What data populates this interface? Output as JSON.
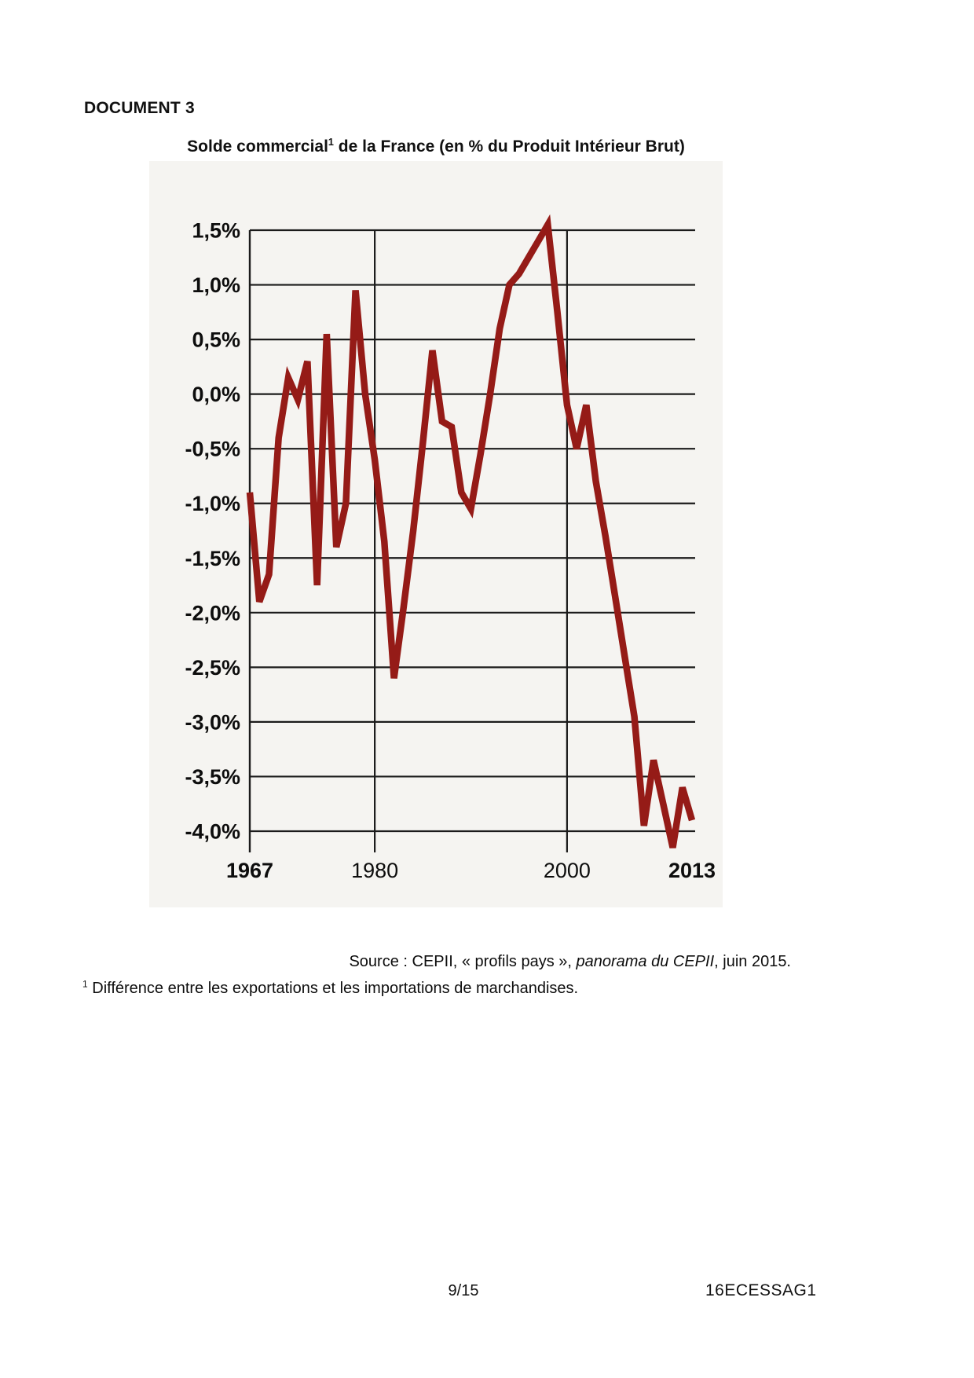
{
  "page": {
    "header": "DOCUMENT 3",
    "footer": {
      "page_number": "9/15",
      "code": "16ECESSAG1"
    }
  },
  "figure": {
    "title": {
      "main": "Solde commercial",
      "sup": "1",
      "rest": " de la France (en % du Produit Intérieur Brut)"
    },
    "source": {
      "prefix": "Source : CEPII, « profils pays », ",
      "italic": "panorama du CEPII",
      "suffix": ", juin 2015."
    },
    "footnote": {
      "sup": "1",
      "text": " Différence entre les exportations et les importations de marchandises."
    }
  },
  "chart_data": {
    "type": "line",
    "title": "Solde commercial de la France (en % du Produit Intérieur Brut)",
    "series_name": "Solde commercial (% du PIB)",
    "x": [
      1967,
      1968,
      1969,
      1970,
      1971,
      1972,
      1973,
      1974,
      1975,
      1976,
      1977,
      1978,
      1979,
      1980,
      1981,
      1982,
      1983,
      1984,
      1985,
      1986,
      1987,
      1988,
      1989,
      1990,
      1991,
      1992,
      1993,
      1994,
      1995,
      1996,
      1997,
      1998,
      1999,
      2000,
      2001,
      2002,
      2003,
      2004,
      2005,
      2006,
      2007,
      2008,
      2009,
      2010,
      2011,
      2012,
      2013
    ],
    "values": [
      -0.9,
      -1.9,
      -1.65,
      -0.4,
      0.15,
      -0.05,
      0.3,
      -1.75,
      0.55,
      -1.4,
      -1.0,
      0.95,
      0.0,
      -0.6,
      -1.35,
      -2.6,
      -1.95,
      -1.25,
      -0.45,
      0.4,
      -0.25,
      -0.3,
      -0.9,
      -1.05,
      -0.55,
      0.0,
      0.6,
      1.0,
      1.1,
      1.25,
      1.4,
      1.55,
      0.75,
      -0.1,
      -0.5,
      -0.1,
      -0.8,
      -1.3,
      -1.85,
      -2.4,
      -2.95,
      -3.95,
      -3.35,
      -3.75,
      -4.15,
      -3.6,
      -3.9
    ],
    "ylim": [
      -4.2,
      1.6
    ],
    "ytick_values": [
      1.5,
      1.0,
      0.5,
      0.0,
      -0.5,
      -1.0,
      -1.5,
      -2.0,
      -2.5,
      -3.0,
      -3.5,
      -4.0
    ],
    "ytick_labels": [
      "1,5%",
      "1,0%",
      "0,5%",
      "0,0%",
      "-0,5%",
      "-1,0%",
      "-1,5%",
      "-2,0%",
      "-2,5%",
      "-3,0%",
      "-3,5%",
      "-4,0%"
    ],
    "xtick_values": [
      1967,
      1980,
      2000,
      2013
    ],
    "xtick_labels": [
      "1967",
      "1980",
      "2000",
      "2013"
    ],
    "vgrid_years": [
      1980,
      2000
    ],
    "grid": "horizontal every 0.5%, vertical at 1980 and 2000",
    "legend": "none",
    "line_color": "#951b17",
    "grid_color": "#1b1b1b",
    "figure_bg": "#f5f4f1"
  }
}
